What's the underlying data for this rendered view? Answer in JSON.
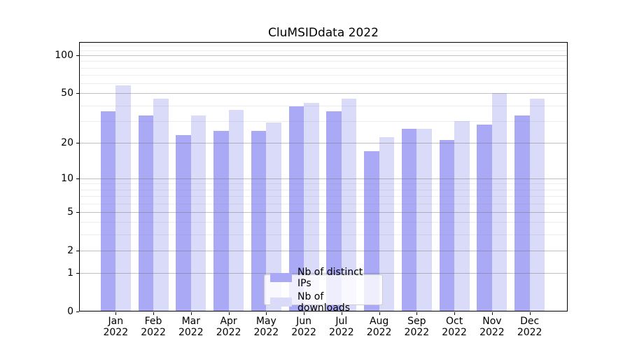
{
  "title": "CluMSIDdata 2022",
  "colors": {
    "bar_distinct_ips": "#a9a9f6",
    "bar_downloads": "#dadaf9",
    "grid_major": "rgba(110,110,110,0.42)",
    "grid_minor": "rgba(128,128,128,0.14)",
    "axis": "#000000",
    "legend_border": "#cccccc",
    "background": "#ffffff"
  },
  "legend": {
    "position": "lower center",
    "items": [
      {
        "label": "Nb of distinct IPs",
        "color_key": "bar_distinct_ips"
      },
      {
        "label": "Nb of downloads",
        "color_key": "bar_downloads"
      }
    ]
  },
  "chart_data": {
    "type": "bar",
    "title": "CluMSIDdata 2022",
    "categories": [
      "Jan 2022",
      "Feb 2022",
      "Mar 2022",
      "Apr 2022",
      "May 2022",
      "Jun 2022",
      "Jul 2022",
      "Aug 2022",
      "Sep 2022",
      "Oct 2022",
      "Nov 2022",
      "Dec 2022"
    ],
    "series": [
      {
        "name": "Nb of distinct IPs",
        "color": "#a9a9f6",
        "values": [
          36,
          33,
          23,
          25,
          25,
          39,
          36,
          17,
          26,
          21,
          28,
          33
        ]
      },
      {
        "name": "Nb of downloads",
        "color": "#dadaf9",
        "values": [
          58,
          45,
          33,
          37,
          29,
          42,
          45,
          22,
          26,
          30,
          50,
          45
        ]
      }
    ],
    "xlabel": "",
    "ylabel": "",
    "yscale": "log1p",
    "ylim": [
      0,
      127
    ],
    "yticks": [
      0,
      1,
      2,
      5,
      10,
      20,
      50,
      100
    ],
    "yticks_minor": [
      3,
      4,
      6,
      7,
      8,
      9,
      30,
      40,
      60,
      70,
      80,
      90,
      110,
      120
    ],
    "grid": true,
    "grid_above_bars": true,
    "legend_position": "lower center"
  }
}
